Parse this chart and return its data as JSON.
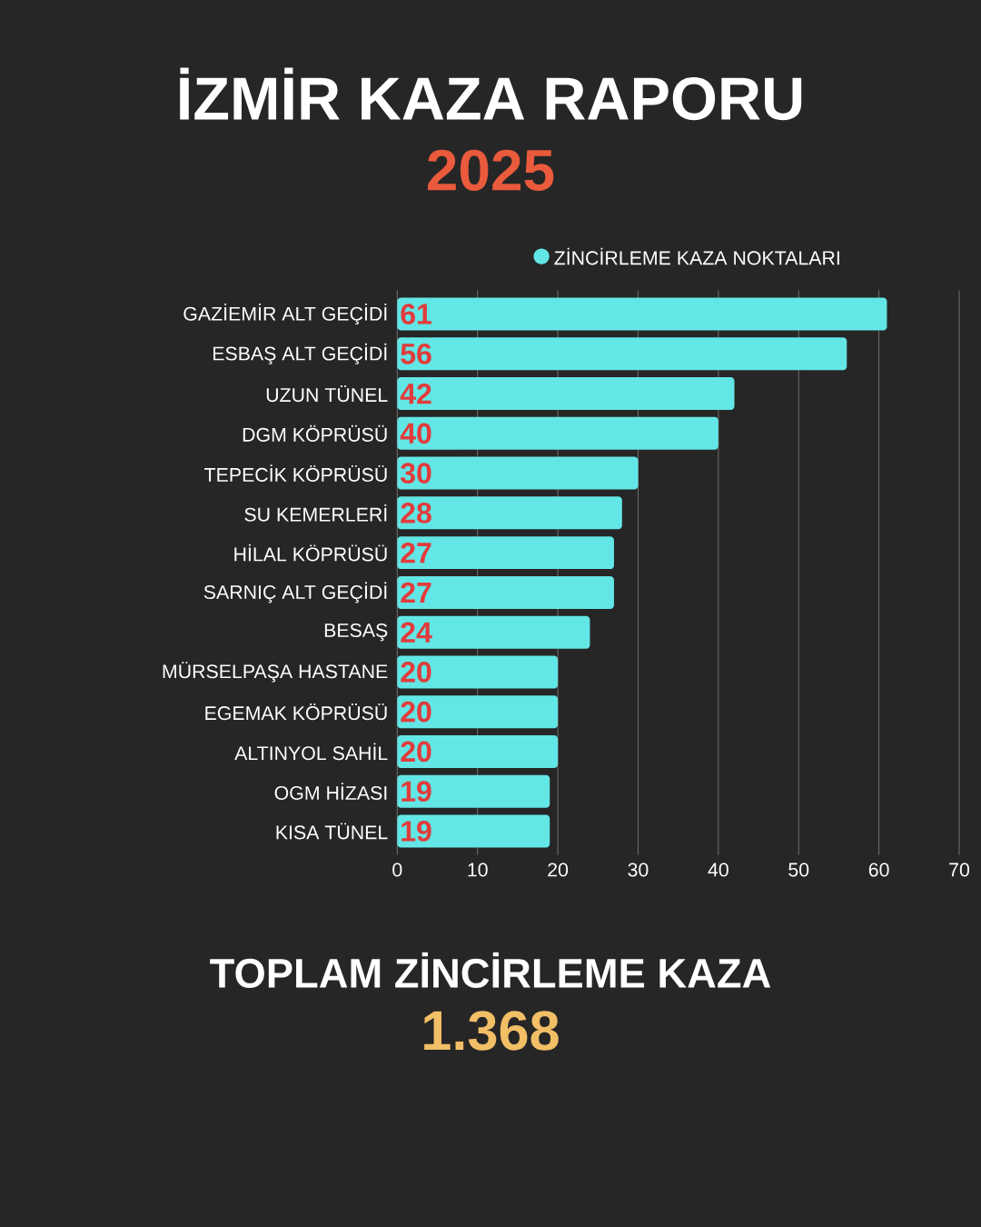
{
  "chart_data": {
    "type": "bar",
    "orientation": "horizontal",
    "title": "İZMİR KAZA RAPORU",
    "subtitle": "2025",
    "categories": [
      "GAZİEMİR ALT GEÇİDİ",
      "ESBAŞ ALT GEÇİDİ",
      "UZUN TÜNEL",
      "DGM KÖPRÜSÜ",
      "TEPECİK KÖPRÜSÜ",
      "SU KEMERLERİ",
      "HİLAL KÖPRÜSÜ",
      "SARNIÇ ALT GEÇİDİ",
      "BESAŞ",
      "MÜRSELPAŞA HASTANE",
      "EGEMAK KÖPRÜSÜ",
      "ALTINYOL SAHİL",
      "OGM HİZASI",
      "KISA TÜNEL"
    ],
    "series": [
      {
        "name": "ZİNCİRLEME KAZA NOKTALARI",
        "color": "#63e6e6",
        "values": [
          61,
          56,
          42,
          40,
          30,
          28,
          27,
          27,
          24,
          20,
          20,
          20,
          19,
          19
        ]
      }
    ],
    "xlim": [
      0,
      70
    ],
    "xticks": [
      0,
      10,
      20,
      30,
      40,
      50,
      60,
      70
    ],
    "grid": "x",
    "legend": "top right",
    "data_labels": true,
    "annotations": [
      "TOPLAM ZİNCİRLEME KAZA",
      "1.368"
    ]
  }
}
